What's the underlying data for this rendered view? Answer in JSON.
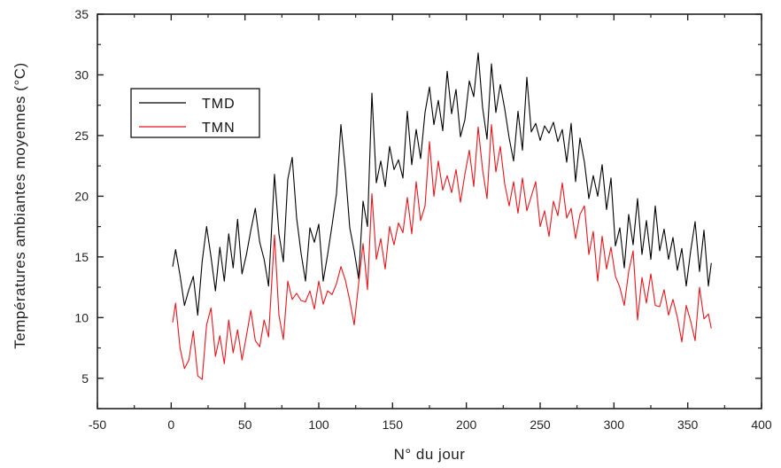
{
  "chart_data": {
    "type": "line",
    "xlabel": "N° du jour",
    "ylabel": "Températures ambiantes moyennes (°C)",
    "xlim": [
      -50,
      400
    ],
    "ylim": [
      2.5,
      35
    ],
    "x_ticks": [
      -50,
      0,
      50,
      100,
      150,
      200,
      250,
      300,
      350,
      400
    ],
    "y_ticks": [
      5,
      10,
      15,
      20,
      25,
      30,
      35
    ],
    "legend_position": "upper-left",
    "series": [
      {
        "name": "TMD",
        "color": "#000000",
        "x": [
          1,
          3,
          6,
          9,
          12,
          15,
          18,
          21,
          24,
          27,
          30,
          33,
          36,
          39,
          42,
          45,
          48,
          51,
          54,
          57,
          60,
          63,
          66,
          70,
          73,
          76,
          79,
          82,
          85,
          88,
          91,
          94,
          97,
          100,
          103,
          106,
          109,
          112,
          115,
          118,
          121,
          124,
          127,
          130,
          133,
          136,
          139,
          142,
          145,
          148,
          151,
          154,
          157,
          160,
          163,
          166,
          169,
          172,
          175,
          178,
          181,
          184,
          187,
          190,
          193,
          196,
          199,
          202,
          205,
          208,
          211,
          214,
          217,
          220,
          223,
          226,
          229,
          232,
          235,
          238,
          241,
          244,
          247,
          250,
          253,
          256,
          259,
          262,
          265,
          268,
          271,
          274,
          277,
          280,
          283,
          286,
          289,
          292,
          295,
          298,
          301,
          304,
          307,
          310,
          313,
          316,
          319,
          322,
          325,
          328,
          331,
          334,
          337,
          340,
          343,
          346,
          349,
          352,
          355,
          358,
          361,
          364,
          366
        ],
        "values": [
          14.2,
          15.6,
          13.5,
          11.0,
          12.3,
          13.4,
          10.2,
          14.6,
          17.5,
          15.0,
          12.2,
          15.8,
          13.0,
          16.9,
          14.1,
          18.1,
          13.6,
          15.2,
          17.2,
          19.0,
          16.2,
          14.8,
          12.6,
          21.8,
          16.9,
          14.6,
          21.4,
          23.2,
          18.2,
          15.3,
          13.0,
          17.4,
          16.2,
          17.7,
          13.0,
          15.2,
          17.6,
          20.2,
          25.9,
          22.1,
          17.4,
          15.5,
          13.2,
          19.6,
          17.5,
          28.5,
          21.1,
          22.9,
          20.8,
          24.1,
          22.2,
          23.0,
          21.5,
          27.0,
          22.6,
          25.5,
          23.1,
          26.9,
          29.0,
          25.9,
          27.9,
          25.4,
          30.3,
          26.8,
          28.8,
          24.9,
          26.3,
          29.5,
          28.2,
          31.8,
          27.3,
          24.7,
          30.9,
          26.9,
          29.2,
          27.2,
          24.8,
          22.9,
          27.0,
          23.8,
          29.8,
          25.3,
          26.0,
          24.6,
          25.8,
          25.2,
          26.1,
          24.5,
          25.5,
          22.8,
          26.0,
          21.2,
          24.8,
          22.8,
          19.8,
          21.7,
          20.0,
          22.6,
          18.9,
          21.5,
          15.9,
          17.4,
          14.1,
          18.5,
          16.0,
          19.8,
          15.2,
          18.0,
          14.8,
          19.2,
          15.5,
          17.3,
          14.8,
          16.6,
          13.9,
          15.7,
          12.6,
          15.5,
          17.9,
          13.8,
          17.2,
          12.6,
          14.5
        ]
      },
      {
        "name": "TMN",
        "color": "#e8141c",
        "x": [
          1,
          3,
          6,
          9,
          12,
          15,
          18,
          21,
          24,
          27,
          30,
          33,
          36,
          39,
          42,
          45,
          48,
          51,
          54,
          57,
          60,
          63,
          66,
          70,
          73,
          76,
          79,
          82,
          85,
          88,
          91,
          94,
          97,
          100,
          103,
          106,
          109,
          112,
          115,
          118,
          121,
          124,
          127,
          130,
          133,
          136,
          139,
          142,
          145,
          148,
          151,
          154,
          157,
          160,
          163,
          166,
          169,
          172,
          175,
          178,
          181,
          184,
          187,
          190,
          193,
          196,
          199,
          202,
          205,
          208,
          211,
          214,
          217,
          220,
          223,
          226,
          229,
          232,
          235,
          238,
          241,
          244,
          247,
          250,
          253,
          256,
          259,
          262,
          265,
          268,
          271,
          274,
          277,
          280,
          283,
          286,
          289,
          292,
          295,
          298,
          301,
          304,
          307,
          310,
          313,
          316,
          319,
          322,
          325,
          328,
          331,
          334,
          337,
          340,
          343,
          346,
          349,
          352,
          355,
          358,
          361,
          364,
          366
        ],
        "values": [
          9.6,
          11.2,
          7.5,
          5.8,
          6.5,
          8.9,
          5.2,
          4.9,
          9.4,
          10.8,
          6.8,
          8.5,
          6.2,
          9.8,
          7.1,
          9.0,
          6.5,
          8.5,
          10.6,
          8.1,
          7.6,
          9.8,
          8.4,
          16.8,
          10.2,
          8.2,
          13.0,
          11.5,
          12.0,
          11.4,
          11.3,
          12.2,
          10.7,
          13.0,
          11.1,
          12.2,
          11.9,
          12.8,
          14.2,
          13.1,
          11.4,
          9.4,
          12.8,
          16.1,
          12.3,
          20.2,
          14.8,
          16.5,
          14.0,
          17.5,
          16.0,
          17.8,
          17.0,
          19.9,
          16.9,
          21.2,
          18.0,
          19.2,
          24.5,
          20.0,
          22.9,
          20.5,
          21.7,
          20.3,
          22.2,
          19.5,
          21.8,
          23.8,
          20.8,
          25.7,
          22.2,
          19.8,
          25.9,
          22.0,
          24.1,
          21.0,
          19.2,
          21.2,
          18.6,
          21.5,
          18.8,
          20.0,
          21.2,
          17.5,
          18.8,
          16.7,
          19.6,
          18.4,
          21.1,
          18.2,
          19.0,
          16.5,
          18.5,
          19.2,
          15.2,
          17.1,
          13.0,
          16.7,
          14.0,
          15.8,
          13.4,
          12.5,
          11.0,
          13.8,
          15.5,
          9.8,
          13.3,
          11.2,
          13.6,
          11.0,
          10.9,
          12.3,
          10.2,
          11.5,
          10.0,
          8.0,
          11.0,
          9.7,
          8.1,
          12.5,
          9.9,
          10.3,
          9.1
        ]
      }
    ]
  }
}
